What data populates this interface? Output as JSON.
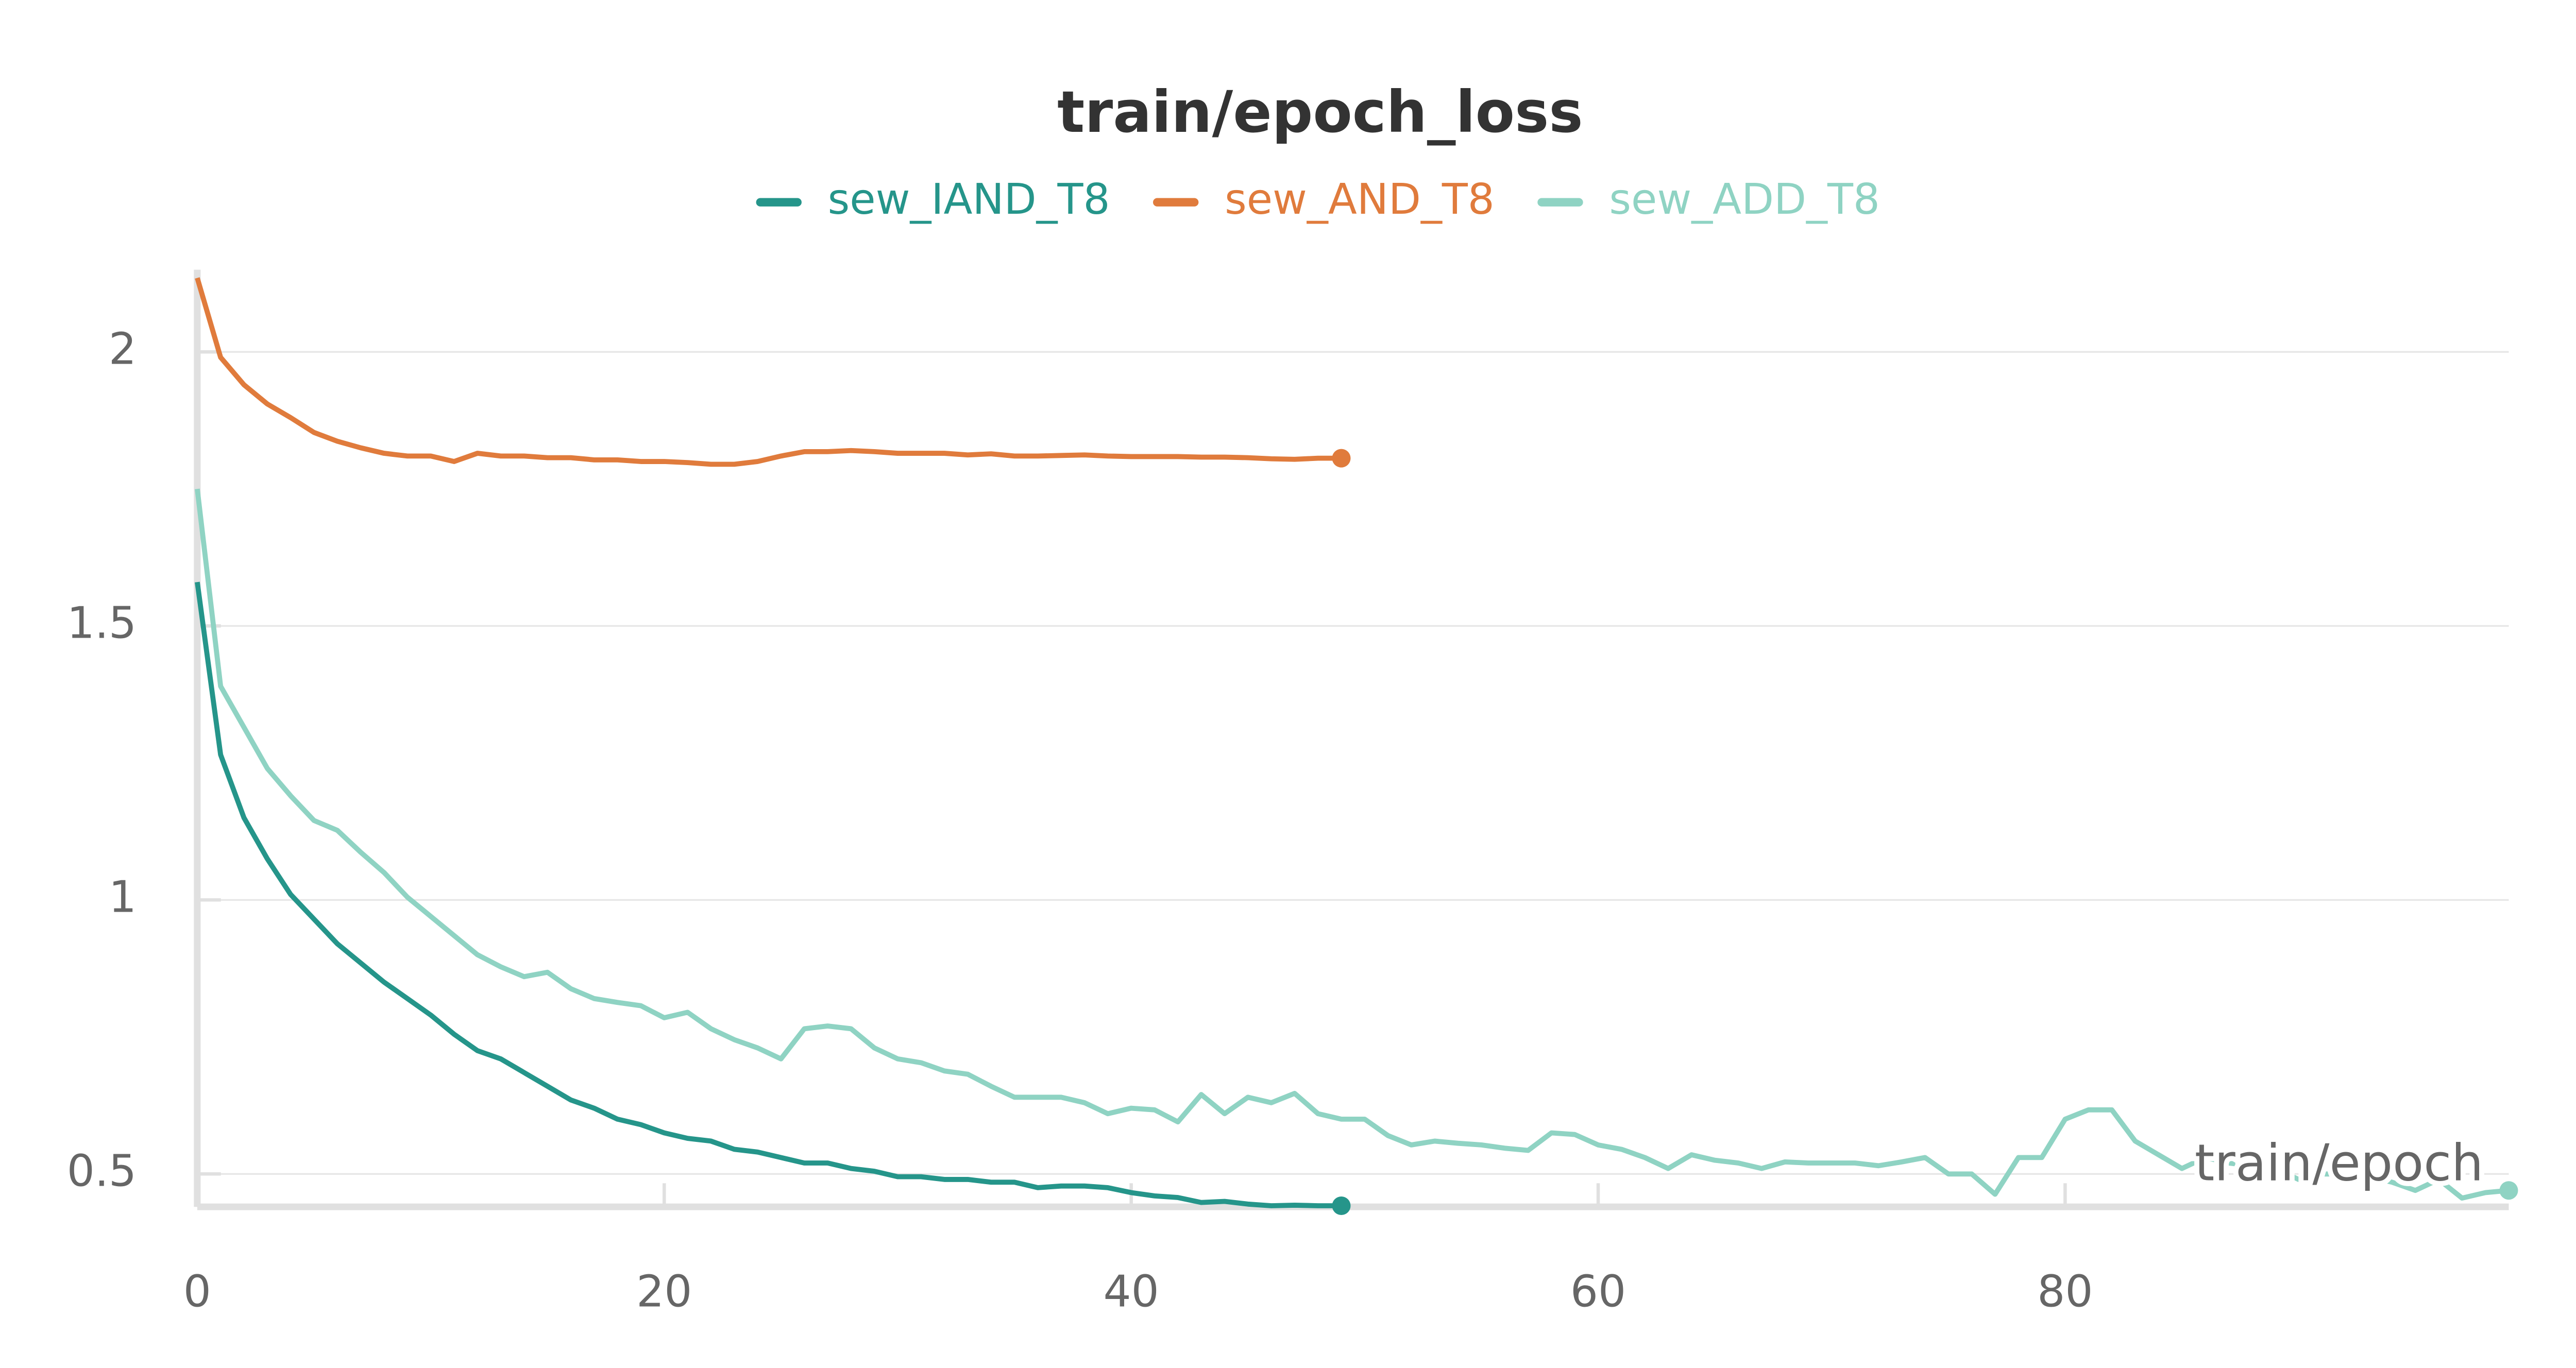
{
  "chart_data": {
    "type": "line",
    "title": "train/epoch_loss",
    "x_label": "train/epoch",
    "x": [
      0,
      1,
      2,
      3,
      4,
      5,
      6,
      7,
      8,
      9,
      10,
      11,
      12,
      13,
      14,
      15,
      16,
      17,
      18,
      19,
      20,
      21,
      22,
      23,
      24,
      25,
      26,
      27,
      28,
      29,
      30,
      31,
      32,
      33,
      34,
      35,
      36,
      37,
      38,
      39,
      40,
      41,
      42,
      43,
      44,
      45,
      46,
      47,
      48,
      49,
      50,
      51,
      52,
      53,
      54,
      55,
      56,
      57,
      58,
      59,
      60,
      61,
      62,
      63,
      64,
      65,
      66,
      67,
      68,
      69,
      70,
      71,
      72,
      73,
      74,
      75,
      76,
      77,
      78,
      79,
      80,
      81,
      82,
      83,
      84,
      85,
      86,
      87,
      88,
      89,
      90,
      91,
      92,
      93,
      94,
      95,
      96,
      97,
      98,
      99
    ],
    "series": [
      {
        "name": "sew_IAND_T8",
        "color": "#25958a",
        "values": [
          1.58,
          1.265,
          1.15,
          1.075,
          1.01,
          0.965,
          0.92,
          0.885,
          0.85,
          0.82,
          0.79,
          0.755,
          0.725,
          0.71,
          0.685,
          0.66,
          0.635,
          0.62,
          0.6,
          0.59,
          0.575,
          0.565,
          0.56,
          0.545,
          0.54,
          0.53,
          0.52,
          0.52,
          0.51,
          0.505,
          0.495,
          0.495,
          0.49,
          0.49,
          0.485,
          0.485,
          0.475,
          0.478,
          0.478,
          0.475,
          0.466,
          0.46,
          0.457,
          0.448,
          0.45,
          0.445,
          0.442,
          0.443,
          0.442,
          0.442,
          null,
          null,
          null,
          null,
          null,
          null,
          null,
          null,
          null,
          null,
          null,
          null,
          null,
          null,
          null,
          null,
          null,
          null,
          null,
          null,
          null,
          null,
          null,
          null,
          null,
          null,
          null,
          null,
          null,
          null,
          null,
          null,
          null,
          null,
          null,
          null,
          null,
          null,
          null,
          null,
          null,
          null,
          null,
          null,
          null,
          null,
          null,
          null,
          null,
          null
        ]
      },
      {
        "name": "sew_AND_T8",
        "color": "#e07b3c",
        "values": [
          2.135,
          1.99,
          1.94,
          1.905,
          1.88,
          1.853,
          1.837,
          1.825,
          1.815,
          1.81,
          1.81,
          1.8,
          1.815,
          1.81,
          1.81,
          1.807,
          1.807,
          1.803,
          1.803,
          1.8,
          1.8,
          1.798,
          1.795,
          1.795,
          1.8,
          1.81,
          1.818,
          1.818,
          1.82,
          1.818,
          1.815,
          1.815,
          1.815,
          1.812,
          1.814,
          1.81,
          1.81,
          1.811,
          1.812,
          1.81,
          1.809,
          1.809,
          1.809,
          1.808,
          1.808,
          1.807,
          1.805,
          1.804,
          1.806,
          1.806,
          null,
          null,
          null,
          null,
          null,
          null,
          null,
          null,
          null,
          null,
          null,
          null,
          null,
          null,
          null,
          null,
          null,
          null,
          null,
          null,
          null,
          null,
          null,
          null,
          null,
          null,
          null,
          null,
          null,
          null,
          null,
          null,
          null,
          null,
          null,
          null,
          null,
          null,
          null,
          null,
          null,
          null,
          null,
          null,
          null,
          null,
          null,
          null,
          null,
          null
        ]
      },
      {
        "name": "sew_ADD_T8",
        "color": "#8fd3c3",
        "values": [
          1.75,
          1.39,
          1.315,
          1.24,
          1.19,
          1.145,
          1.127,
          1.087,
          1.05,
          1.005,
          0.97,
          0.935,
          0.9,
          0.878,
          0.86,
          0.868,
          0.838,
          0.82,
          0.813,
          0.807,
          0.785,
          0.795,
          0.765,
          0.745,
          0.73,
          0.71,
          0.765,
          0.77,
          0.765,
          0.73,
          0.71,
          0.703,
          0.688,
          0.682,
          0.66,
          0.64,
          0.64,
          0.64,
          0.63,
          0.61,
          0.62,
          0.617,
          0.595,
          0.645,
          0.61,
          0.64,
          0.63,
          0.647,
          0.61,
          0.6,
          0.6,
          0.57,
          0.553,
          0.56,
          0.556,
          0.553,
          0.547,
          0.543,
          0.575,
          0.572,
          0.553,
          0.545,
          0.53,
          0.51,
          0.535,
          0.525,
          0.52,
          0.51,
          0.522,
          0.52,
          0.52,
          0.52,
          0.515,
          0.522,
          0.53,
          0.5,
          0.5,
          0.463,
          0.53,
          0.53,
          0.6,
          0.617,
          0.617,
          0.56,
          0.535,
          0.51,
          0.53,
          0.52,
          0.515,
          0.51,
          0.49,
          0.5,
          0.5,
          0.495,
          0.485,
          0.47,
          0.49,
          0.456,
          0.466,
          0.47
        ]
      }
    ],
    "xlim": [
      0,
      99
    ],
    "ylim": [
      0.44,
      2.15
    ],
    "xticks": [
      0,
      20,
      40,
      60,
      80
    ],
    "yticks": [
      0.5,
      1,
      1.5,
      2
    ],
    "grid": true
  }
}
